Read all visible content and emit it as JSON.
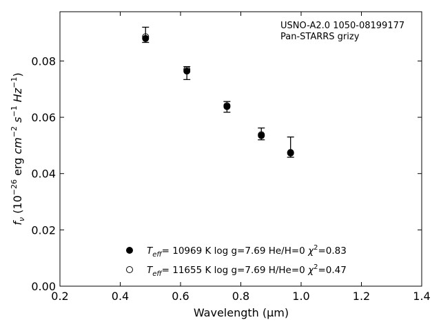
{
  "chart_data": {
    "type": "scatter",
    "title": "",
    "xlabel": "Wavelength (μm)",
    "ylabel": "f_ν (10^-26 erg cm^-2 s^-1 Hz^-1)",
    "xlim": [
      0.2,
      1.4
    ],
    "ylim": [
      0.0,
      0.0975
    ],
    "xticks": [
      "0.2",
      "0.4",
      "0.6",
      "0.8",
      "1.0",
      "1.2",
      "1.4"
    ],
    "yticks": [
      "0.00",
      "0.02",
      "0.04",
      "0.06",
      "0.08"
    ],
    "grid": false,
    "legend_position": "bottom-left",
    "annotations": [
      "USNO-A2.0 1050-08199177",
      "Pan-STARRS grizy"
    ],
    "observed": {
      "x": [
        0.484,
        0.621,
        0.754,
        0.868,
        0.965
      ],
      "y": [
        0.089,
        0.0766,
        0.0638,
        0.054,
        0.0494
      ],
      "err_low": [
        0.0024,
        0.0032,
        0.002,
        0.002,
        0.0036
      ],
      "err_high": [
        0.003,
        0.0014,
        0.0018,
        0.0022,
        0.0036
      ]
    },
    "series": [
      {
        "name": "T_eff= 10969 K  log g=7.69  He/H=0  χ²=0.83",
        "marker": "filled-circle",
        "x": [
          0.484,
          0.621,
          0.754,
          0.868,
          0.965
        ],
        "y": [
          0.088,
          0.0764,
          0.0638,
          0.0535,
          0.0473
        ]
      },
      {
        "name": "T_eff= 11655 K  log g=7.69  H/He=0  χ²=0.47",
        "marker": "open-circle",
        "x": [
          0.484,
          0.621,
          0.754,
          0.868,
          0.965
        ],
        "y": [
          0.0886,
          0.0769,
          0.0641,
          0.0538,
          0.0475
        ]
      }
    ]
  }
}
